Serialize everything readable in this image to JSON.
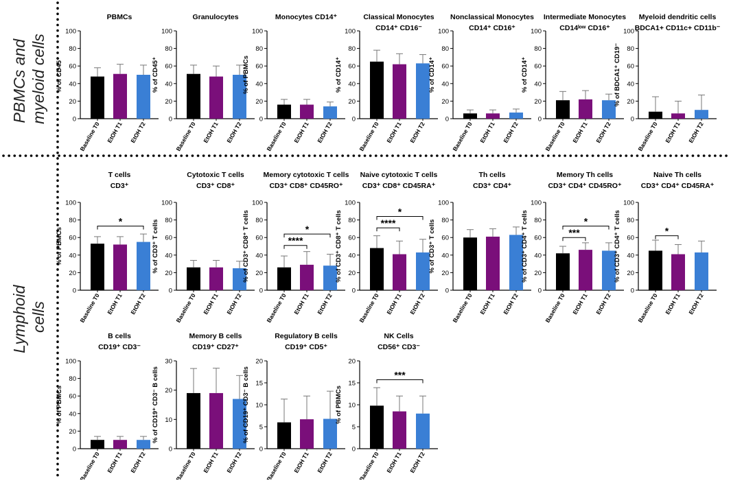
{
  "section_labels": {
    "myeloid": [
      "PBMCs and",
      "myeloid cells"
    ],
    "lymphoid": [
      "Lymphoid",
      "cells"
    ]
  },
  "legend": {
    "categories": [
      "Baseline T0",
      "EtOH T1",
      "EtOH T2"
    ],
    "colors": [
      "#000000",
      "#7a0f7a",
      "#3a7fd5"
    ]
  },
  "chart_data": [
    {
      "type": "bar",
      "title": [
        "PBMCs"
      ],
      "ylabel": "% of CD45⁺",
      "ylim": [
        0,
        100
      ],
      "yticks": [
        0,
        20,
        40,
        60,
        80,
        100
      ],
      "categories": [
        "Baseline T0",
        "EtOH T1",
        "EtOH T2"
      ],
      "values": [
        48,
        51,
        50
      ],
      "errors": [
        10,
        11,
        11
      ],
      "significance": []
    },
    {
      "type": "bar",
      "title": [
        "Granulocytes"
      ],
      "ylabel": "% of CD45⁺",
      "ylim": [
        0,
        100
      ],
      "yticks": [
        0,
        20,
        40,
        60,
        80,
        100
      ],
      "categories": [
        "Baseline T0",
        "EtOH T1",
        "EtOH T2"
      ],
      "values": [
        51,
        48,
        50
      ],
      "errors": [
        10,
        12,
        11
      ],
      "significance": []
    },
    {
      "type": "bar",
      "title": [
        "Monocytes CD14⁺"
      ],
      "ylabel": "% of PBMCs",
      "ylim": [
        0,
        100
      ],
      "yticks": [
        0,
        20,
        40,
        60,
        80,
        100
      ],
      "categories": [
        "Baseline T0",
        "EtOH T1",
        "EtOH T2"
      ],
      "values": [
        16,
        16,
        14
      ],
      "errors": [
        6,
        6,
        5
      ],
      "significance": []
    },
    {
      "type": "bar",
      "title": [
        "Classical Monocytes",
        "CD14⁺ CD16⁻"
      ],
      "ylabel": "% of CD14⁺",
      "ylim": [
        0,
        100
      ],
      "yticks": [
        0,
        20,
        40,
        60,
        80,
        100
      ],
      "categories": [
        "Baseline T0",
        "EtOH T1",
        "EtOH T2"
      ],
      "values": [
        65,
        62,
        63
      ],
      "errors": [
        13,
        12,
        10
      ],
      "significance": []
    },
    {
      "type": "bar",
      "title": [
        "Nonclassical Monocytes",
        "CD14⁺ CD16⁺"
      ],
      "ylabel": "% of CD14⁺",
      "ylim": [
        0,
        100
      ],
      "yticks": [
        0,
        20,
        40,
        60,
        80,
        100
      ],
      "categories": [
        "Baseline T0",
        "EtOH T1",
        "EtOH T2"
      ],
      "values": [
        6,
        6,
        7
      ],
      "errors": [
        4,
        4,
        4
      ],
      "significance": []
    },
    {
      "type": "bar",
      "title": [
        "Intermediate Monocytes",
        "CD14ˡᵒʷ CD16⁺"
      ],
      "ylabel": "% of CD14⁺",
      "ylim": [
        0,
        100
      ],
      "yticks": [
        0,
        20,
        40,
        60,
        80,
        100
      ],
      "categories": [
        "Baseline T0",
        "EtOH T1",
        "EtOH T2"
      ],
      "values": [
        21,
        22,
        21
      ],
      "errors": [
        10,
        10,
        7
      ],
      "significance": []
    },
    {
      "type": "bar",
      "title": [
        "Myeloid dendritic cells",
        "BDCA1+ CD11c+ CD11b⁻"
      ],
      "ylabel": "% of BDCA1⁺ CD19⁻",
      "ylim": [
        0,
        100
      ],
      "yticks": [
        0,
        20,
        40,
        60,
        80,
        100
      ],
      "categories": [
        "Baseline T0",
        "EtOH T1",
        "EtOH T2"
      ],
      "values": [
        8,
        6,
        10
      ],
      "errors": [
        17,
        14,
        17
      ],
      "significance": []
    },
    {
      "type": "bar",
      "title": [
        "T cells",
        "CD3⁺"
      ],
      "ylabel": "% of PBMCs",
      "ylim": [
        0,
        100
      ],
      "yticks": [
        0,
        20,
        40,
        60,
        80,
        100
      ],
      "categories": [
        "Baseline T0",
        "EtOH T1",
        "EtOH T2"
      ],
      "values": [
        53,
        52,
        55
      ],
      "errors": [
        8,
        9,
        9
      ],
      "significance": [
        {
          "from": 0,
          "to": 2,
          "label": "*",
          "y": 73
        }
      ]
    },
    {
      "type": "bar",
      "title": [
        "Cytotoxic T cells",
        "CD3⁺ CD8⁺"
      ],
      "ylabel": "% of CD3⁺ T cells",
      "ylim": [
        0,
        100
      ],
      "yticks": [
        0,
        20,
        40,
        60,
        80,
        100
      ],
      "categories": [
        "Baseline T0",
        "EtOH T1",
        "EtOH T2"
      ],
      "values": [
        26,
        26,
        25
      ],
      "errors": [
        8,
        8,
        8
      ],
      "significance": []
    },
    {
      "type": "bar",
      "title": [
        "Memory cytotoxic T cells",
        "CD3⁺ CD8⁺ CD45RO⁺"
      ],
      "ylabel": "% of CD3⁺ CD8⁺ T cells",
      "ylim": [
        0,
        100
      ],
      "yticks": [
        0,
        20,
        40,
        60,
        80,
        100
      ],
      "categories": [
        "Baseline T0",
        "EtOH T1",
        "EtOH T2"
      ],
      "values": [
        26,
        29,
        28
      ],
      "errors": [
        13,
        15,
        13
      ],
      "significance": [
        {
          "from": 0,
          "to": 1,
          "label": "****",
          "y": 51
        },
        {
          "from": 0,
          "to": 2,
          "label": "*",
          "y": 64
        }
      ]
    },
    {
      "type": "bar",
      "title": [
        "Naive cytotoxic T cells",
        "CD3⁺ CD8⁺ CD45RA⁺"
      ],
      "ylabel": "% of CD3⁺ CD8⁺ T cells",
      "ylim": [
        0,
        100
      ],
      "yticks": [
        0,
        20,
        40,
        60,
        80,
        100
      ],
      "categories": [
        "Baseline T0",
        "EtOH T1",
        "EtOH T2"
      ],
      "values": [
        48,
        41,
        43
      ],
      "errors": [
        14,
        15,
        15
      ],
      "significance": [
        {
          "from": 0,
          "to": 1,
          "label": "****",
          "y": 71
        },
        {
          "from": 0,
          "to": 2,
          "label": "*",
          "y": 84
        }
      ]
    },
    {
      "type": "bar",
      "title": [
        "Th cells",
        "CD3⁺ CD4⁺"
      ],
      "ylabel": "% of CD3⁺ T cells",
      "ylim": [
        0,
        100
      ],
      "yticks": [
        0,
        20,
        40,
        60,
        80,
        100
      ],
      "categories": [
        "Baseline T0",
        "EtOH T1",
        "EtOH T2"
      ],
      "values": [
        60,
        61,
        63
      ],
      "errors": [
        9,
        9,
        9
      ],
      "significance": []
    },
    {
      "type": "bar",
      "title": [
        "Memory Th cells",
        "CD3⁺ CD4⁺ CD45RO⁺"
      ],
      "ylabel": "% of CD3⁺ CD4⁺ T cells",
      "ylim": [
        0,
        100
      ],
      "yticks": [
        0,
        20,
        40,
        60,
        80,
        100
      ],
      "categories": [
        "Baseline T0",
        "EtOH T1",
        "EtOH T2"
      ],
      "values": [
        42,
        46,
        45
      ],
      "errors": [
        8,
        8,
        9
      ],
      "significance": [
        {
          "from": 0,
          "to": 1,
          "label": "***",
          "y": 60
        },
        {
          "from": 0,
          "to": 2,
          "label": "*",
          "y": 73
        }
      ]
    },
    {
      "type": "bar",
      "title": [
        "Naive Th cells",
        "CD3⁺ CD4⁺ CD45RA⁺"
      ],
      "ylabel": "% of CD3⁺ CD4⁺ T cells",
      "ylim": [
        0,
        100
      ],
      "yticks": [
        0,
        20,
        40,
        60,
        80,
        100
      ],
      "categories": [
        "Baseline T0",
        "EtOH T1",
        "EtOH T2"
      ],
      "values": [
        45,
        41,
        43
      ],
      "errors": [
        12,
        11,
        13
      ],
      "significance": [
        {
          "from": 0,
          "to": 1,
          "label": "*",
          "y": 62
        }
      ]
    },
    {
      "type": "bar",
      "title": [
        "B cells",
        "CD19⁺ CD3⁻"
      ],
      "ylabel": "% of PBMCs",
      "ylim": [
        0,
        100
      ],
      "yticks": [
        0,
        20,
        40,
        60,
        80,
        100
      ],
      "categories": [
        "Baseline T0",
        "EtOH T1",
        "EtOH T2"
      ],
      "values": [
        10,
        10,
        10
      ],
      "errors": [
        4,
        4,
        4
      ],
      "significance": []
    },
    {
      "type": "bar",
      "title": [
        "Memory B cells",
        "CD19⁺ CD27⁺"
      ],
      "ylabel": "% of CD19⁺ CD3⁻ B cells",
      "ylim": [
        0,
        30
      ],
      "yticks": [
        0,
        10,
        20,
        30
      ],
      "categories": [
        "Baseline T0",
        "EtOH T1",
        "EtOH T2"
      ],
      "values": [
        19,
        19,
        17
      ],
      "errors": [
        8.4,
        8.5,
        8
      ],
      "significance": []
    },
    {
      "type": "bar",
      "title": [
        "Regulatory B cells",
        "CD19⁺ CD5⁺"
      ],
      "ylabel": "% of CD19⁺ CD3⁻ B cells",
      "ylim": [
        0,
        20
      ],
      "yticks": [
        0,
        5,
        10,
        15,
        20
      ],
      "categories": [
        "Baseline T0",
        "EtOH T1",
        "EtOH T2"
      ],
      "values": [
        6,
        6.7,
        6.8
      ],
      "errors": [
        5.3,
        5.3,
        6.3
      ],
      "significance": []
    },
    {
      "type": "bar",
      "title": [
        "NK Cells",
        "CD56⁺ CD3⁻"
      ],
      "ylabel": "% of PBMCs",
      "ylim": [
        0,
        20
      ],
      "yticks": [
        0,
        5,
        10,
        15,
        20
      ],
      "categories": [
        "Baseline T0",
        "EtOH T1",
        "EtOH T2"
      ],
      "values": [
        9.8,
        8.5,
        8
      ],
      "errors": [
        4.1,
        3.5,
        4
      ],
      "significance": [
        {
          "from": 0,
          "to": 2,
          "label": "***",
          "y": 15.7
        }
      ]
    }
  ]
}
